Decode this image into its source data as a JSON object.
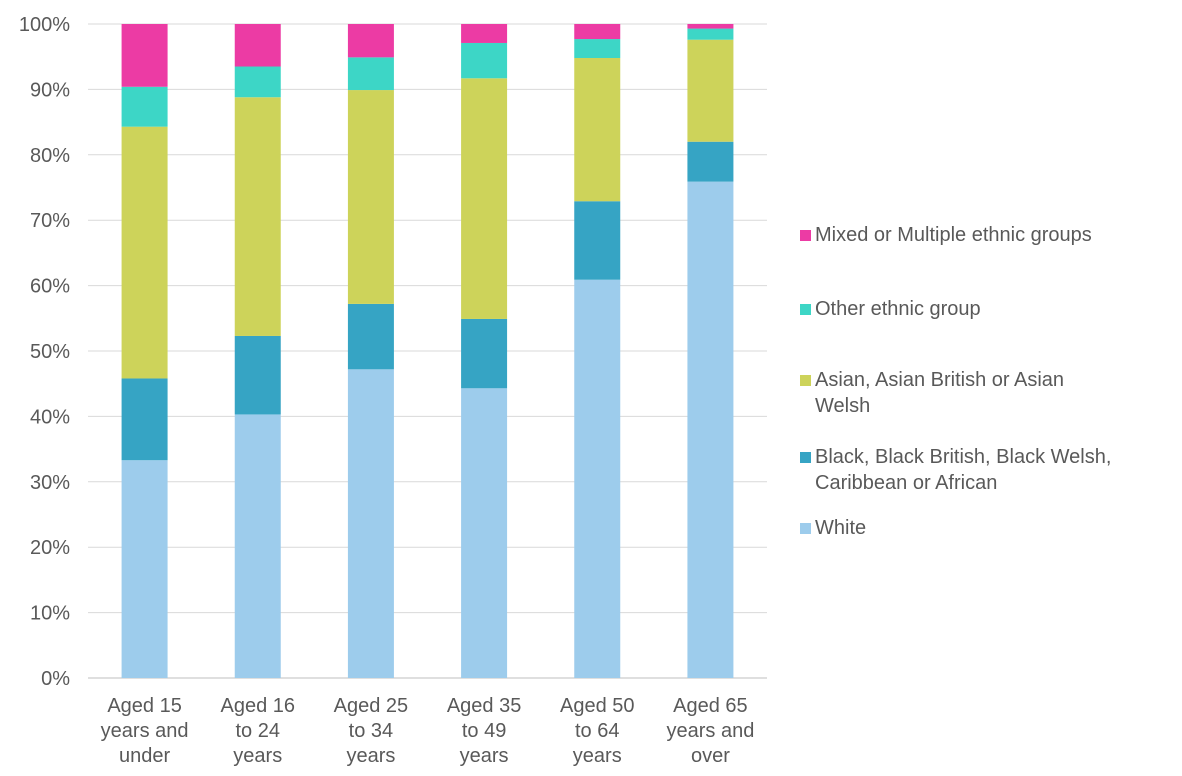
{
  "chart_data": {
    "type": "bar",
    "stacked": true,
    "categories": [
      "Aged 15 years and under",
      "Aged 16 to 24 years",
      "Aged 25 to 34 years",
      "Aged 35 to 49 years",
      "Aged 50 to 64 years",
      "Aged 65 years and over"
    ],
    "category_lines": [
      [
        "Aged 15",
        "years and",
        "under"
      ],
      [
        "Aged 16",
        "to 24",
        "years"
      ],
      [
        "Aged 25",
        "to 34",
        "years"
      ],
      [
        "Aged 35",
        "to 49",
        "years"
      ],
      [
        "Aged 50",
        "to 64",
        "years"
      ],
      [
        "Aged 65",
        "years and",
        "over"
      ]
    ],
    "series": [
      {
        "name": "White",
        "color": "#9DCCEC",
        "values": [
          33.3,
          40.3,
          47.2,
          44.3,
          60.9,
          75.9
        ]
      },
      {
        "name": "Black, Black British, Black Welsh, Caribbean or African",
        "color": "#36A4C4",
        "values": [
          12.5,
          12.0,
          10.0,
          10.6,
          12.0,
          6.1
        ]
      },
      {
        "name": "Asian, Asian British or Asian Welsh",
        "color": "#CDD35A",
        "values": [
          38.5,
          36.5,
          32.7,
          36.8,
          21.9,
          15.6
        ]
      },
      {
        "name": "Other ethnic group",
        "color": "#3DD6C6",
        "values": [
          6.1,
          4.7,
          5.0,
          5.4,
          2.9,
          1.7
        ]
      },
      {
        "name": "Mixed or Multiple ethnic groups",
        "color": "#EC3BA4",
        "values": [
          9.6,
          6.5,
          5.1,
          2.9,
          2.3,
          0.7
        ]
      }
    ],
    "yticks": [
      "0%",
      "10%",
      "20%",
      "30%",
      "40%",
      "50%",
      "60%",
      "70%",
      "80%",
      "90%",
      "100%"
    ],
    "ylim": [
      0,
      100
    ],
    "grid": true,
    "legend_position": "right"
  },
  "legend": [
    {
      "series": "Mixed or Multiple ethnic groups",
      "lines": [
        "Mixed or Multiple ethnic groups"
      ]
    },
    {
      "series": "Other ethnic group",
      "lines": [
        "Other ethnic group"
      ]
    },
    {
      "series": "Asian, Asian British or Asian Welsh",
      "lines": [
        "Asian, Asian British or Asian",
        "Welsh"
      ]
    },
    {
      "series": "Black, Black British, Black Welsh, Caribbean or African",
      "lines": [
        "Black, Black British, Black Welsh,",
        "Caribbean or African"
      ]
    },
    {
      "series": "White",
      "lines": [
        "White"
      ]
    }
  ]
}
